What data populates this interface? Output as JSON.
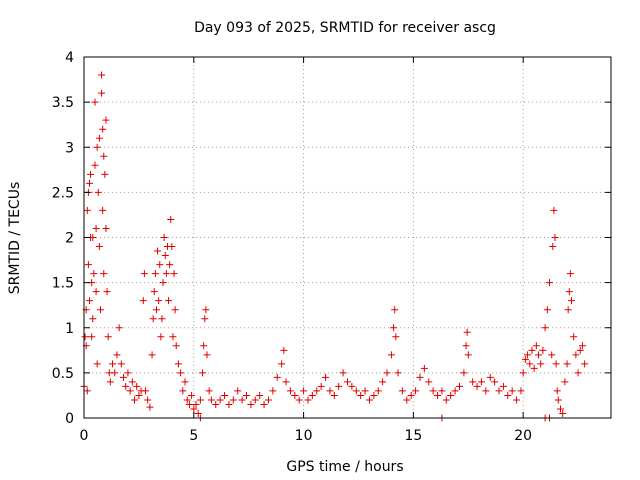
{
  "chart_data": {
    "type": "scatter",
    "title": "Day 093 of 2025, SRMTID for receiver ascg",
    "xlabel": "GPS time / hours",
    "ylabel": "SRMTID / TECUs",
    "xlim": [
      0,
      24
    ],
    "ylim": [
      0,
      4
    ],
    "x_ticks": [
      0,
      5,
      10,
      15,
      20
    ],
    "y_ticks": [
      0,
      0.5,
      1,
      1.5,
      2,
      2.5,
      3,
      3.5,
      4
    ],
    "x_tick_labels": [
      "0",
      "5",
      "10",
      "15",
      "20"
    ],
    "y_tick_labels": [
      "0",
      "0.5",
      "1",
      "1.5",
      "2",
      "2.5",
      "3",
      "3.5",
      "4"
    ],
    "grid": true,
    "marker": "+",
    "series_color": "#e00000",
    "series": [
      {
        "name": "SRMTID",
        "points": [
          [
            0.0,
            0.35
          ],
          [
            0.05,
            0.9
          ],
          [
            0.1,
            0.8
          ],
          [
            0.1,
            1.2
          ],
          [
            0.15,
            0.3
          ],
          [
            0.15,
            2.3
          ],
          [
            0.2,
            2.5
          ],
          [
            0.2,
            1.7
          ],
          [
            0.25,
            2.6
          ],
          [
            0.25,
            1.3
          ],
          [
            0.3,
            2.7
          ],
          [
            0.3,
            2.0
          ],
          [
            0.35,
            1.5
          ],
          [
            0.35,
            0.9
          ],
          [
            0.4,
            2.0
          ],
          [
            0.4,
            1.1
          ],
          [
            0.45,
            1.6
          ],
          [
            0.5,
            3.5
          ],
          [
            0.5,
            2.8
          ],
          [
            0.55,
            1.4
          ],
          [
            0.55,
            2.1
          ],
          [
            0.6,
            3.0
          ],
          [
            0.6,
            0.6
          ],
          [
            0.65,
            2.5
          ],
          [
            0.7,
            3.1
          ],
          [
            0.7,
            1.9
          ],
          [
            0.75,
            1.2
          ],
          [
            0.8,
            3.8
          ],
          [
            0.8,
            3.6
          ],
          [
            0.85,
            3.2
          ],
          [
            0.85,
            2.3
          ],
          [
            0.9,
            2.9
          ],
          [
            0.9,
            1.6
          ],
          [
            0.95,
            2.7
          ],
          [
            1.0,
            3.3
          ],
          [
            1.0,
            2.1
          ],
          [
            1.05,
            1.4
          ],
          [
            1.1,
            0.9
          ],
          [
            1.15,
            0.5
          ],
          [
            1.2,
            0.4
          ],
          [
            1.3,
            0.6
          ],
          [
            1.4,
            0.5
          ],
          [
            1.5,
            0.7
          ],
          [
            1.6,
            1.0
          ],
          [
            1.7,
            0.6
          ],
          [
            1.8,
            0.45
          ],
          [
            1.9,
            0.35
          ],
          [
            2.0,
            0.5
          ],
          [
            2.1,
            0.3
          ],
          [
            2.2,
            0.4
          ],
          [
            2.3,
            0.2
          ],
          [
            2.4,
            0.35
          ],
          [
            2.5,
            0.25
          ],
          [
            2.6,
            0.3
          ],
          [
            2.7,
            1.3
          ],
          [
            2.75,
            1.6
          ],
          [
            2.8,
            0.3
          ],
          [
            2.9,
            0.2
          ],
          [
            3.0,
            0.12
          ],
          [
            3.1,
            0.7
          ],
          [
            3.15,
            1.1
          ],
          [
            3.2,
            1.4
          ],
          [
            3.25,
            1.6
          ],
          [
            3.3,
            1.2
          ],
          [
            3.35,
            1.85
          ],
          [
            3.4,
            1.3
          ],
          [
            3.45,
            1.7
          ],
          [
            3.5,
            0.9
          ],
          [
            3.55,
            1.1
          ],
          [
            3.6,
            1.5
          ],
          [
            3.65,
            2.0
          ],
          [
            3.7,
            1.8
          ],
          [
            3.75,
            1.6
          ],
          [
            3.8,
            1.9
          ],
          [
            3.85,
            1.3
          ],
          [
            3.9,
            1.7
          ],
          [
            3.95,
            2.2
          ],
          [
            4.0,
            1.9
          ],
          [
            4.05,
            0.9
          ],
          [
            4.1,
            1.6
          ],
          [
            4.15,
            1.2
          ],
          [
            4.2,
            0.8
          ],
          [
            4.3,
            0.6
          ],
          [
            4.4,
            0.5
          ],
          [
            4.5,
            0.3
          ],
          [
            4.6,
            0.4
          ],
          [
            4.7,
            0.2
          ],
          [
            4.8,
            0.15
          ],
          [
            4.9,
            0.25
          ],
          [
            5.0,
            0.1
          ],
          [
            5.1,
            0.15
          ],
          [
            5.2,
            0.05
          ],
          [
            5.3,
            0.2
          ],
          [
            5.4,
            0.5
          ],
          [
            5.45,
            0.8
          ],
          [
            5.5,
            1.1
          ],
          [
            5.55,
            1.2
          ],
          [
            5.6,
            0.7
          ],
          [
            5.7,
            0.3
          ],
          [
            5.8,
            0.2
          ],
          [
            6.0,
            0.15
          ],
          [
            6.2,
            0.2
          ],
          [
            6.4,
            0.25
          ],
          [
            6.6,
            0.15
          ],
          [
            6.8,
            0.2
          ],
          [
            7.0,
            0.3
          ],
          [
            7.2,
            0.2
          ],
          [
            7.4,
            0.25
          ],
          [
            7.6,
            0.15
          ],
          [
            7.8,
            0.2
          ],
          [
            8.0,
            0.25
          ],
          [
            8.2,
            0.15
          ],
          [
            8.4,
            0.2
          ],
          [
            8.6,
            0.3
          ],
          [
            8.8,
            0.45
          ],
          [
            9.0,
            0.6
          ],
          [
            9.1,
            0.75
          ],
          [
            9.2,
            0.4
          ],
          [
            9.4,
            0.3
          ],
          [
            9.6,
            0.25
          ],
          [
            9.8,
            0.2
          ],
          [
            10.0,
            0.3
          ],
          [
            10.2,
            0.2
          ],
          [
            10.4,
            0.25
          ],
          [
            10.6,
            0.3
          ],
          [
            10.8,
            0.35
          ],
          [
            11.0,
            0.45
          ],
          [
            11.2,
            0.3
          ],
          [
            11.4,
            0.25
          ],
          [
            11.6,
            0.35
          ],
          [
            11.8,
            0.5
          ],
          [
            12.0,
            0.4
          ],
          [
            12.2,
            0.35
          ],
          [
            12.4,
            0.3
          ],
          [
            12.6,
            0.25
          ],
          [
            12.8,
            0.3
          ],
          [
            13.0,
            0.2
          ],
          [
            13.2,
            0.25
          ],
          [
            13.4,
            0.3
          ],
          [
            13.6,
            0.4
          ],
          [
            13.8,
            0.5
          ],
          [
            14.0,
            0.7
          ],
          [
            14.1,
            1.0
          ],
          [
            14.15,
            1.2
          ],
          [
            14.2,
            0.9
          ],
          [
            14.3,
            0.5
          ],
          [
            14.5,
            0.3
          ],
          [
            14.7,
            0.2
          ],
          [
            14.9,
            0.25
          ],
          [
            15.1,
            0.3
          ],
          [
            15.3,
            0.45
          ],
          [
            15.5,
            0.55
          ],
          [
            15.7,
            0.4
          ],
          [
            15.9,
            0.3
          ],
          [
            16.1,
            0.25
          ],
          [
            16.3,
            0.3
          ],
          [
            16.5,
            0.2
          ],
          [
            16.7,
            0.25
          ],
          [
            16.9,
            0.3
          ],
          [
            17.1,
            0.35
          ],
          [
            17.3,
            0.5
          ],
          [
            17.4,
            0.8
          ],
          [
            17.45,
            0.95
          ],
          [
            17.5,
            0.7
          ],
          [
            17.7,
            0.4
          ],
          [
            17.9,
            0.35
          ],
          [
            18.1,
            0.4
          ],
          [
            18.3,
            0.3
          ],
          [
            18.5,
            0.45
          ],
          [
            18.7,
            0.4
          ],
          [
            18.9,
            0.3
          ],
          [
            19.1,
            0.35
          ],
          [
            19.3,
            0.25
          ],
          [
            19.5,
            0.3
          ],
          [
            19.7,
            0.2
          ],
          [
            19.9,
            0.3
          ],
          [
            20.0,
            0.5
          ],
          [
            20.1,
            0.65
          ],
          [
            20.2,
            0.7
          ],
          [
            20.3,
            0.6
          ],
          [
            20.4,
            0.75
          ],
          [
            20.5,
            0.55
          ],
          [
            20.6,
            0.8
          ],
          [
            20.7,
            0.7
          ],
          [
            20.8,
            0.6
          ],
          [
            20.9,
            0.75
          ],
          [
            21.0,
            1.0
          ],
          [
            21.1,
            1.2
          ],
          [
            21.2,
            1.5
          ],
          [
            21.3,
            0.7
          ],
          [
            21.35,
            1.9
          ],
          [
            21.4,
            2.3
          ],
          [
            21.45,
            2.0
          ],
          [
            21.5,
            0.6
          ],
          [
            21.55,
            0.3
          ],
          [
            21.6,
            0.2
          ],
          [
            21.7,
            0.1
          ],
          [
            21.8,
            0.05
          ],
          [
            21.9,
            0.4
          ],
          [
            22.0,
            0.6
          ],
          [
            22.05,
            1.2
          ],
          [
            22.1,
            1.4
          ],
          [
            22.15,
            1.6
          ],
          [
            22.2,
            1.3
          ],
          [
            22.3,
            0.9
          ],
          [
            22.4,
            0.7
          ],
          [
            22.5,
            0.5
          ],
          [
            22.6,
            0.75
          ],
          [
            22.7,
            0.8
          ],
          [
            22.8,
            0.6
          ],
          [
            21.0,
            0.0
          ],
          [
            21.2,
            0.0
          ],
          [
            16.3,
            0.0
          ],
          [
            5.3,
            0.0
          ]
        ]
      }
    ]
  }
}
